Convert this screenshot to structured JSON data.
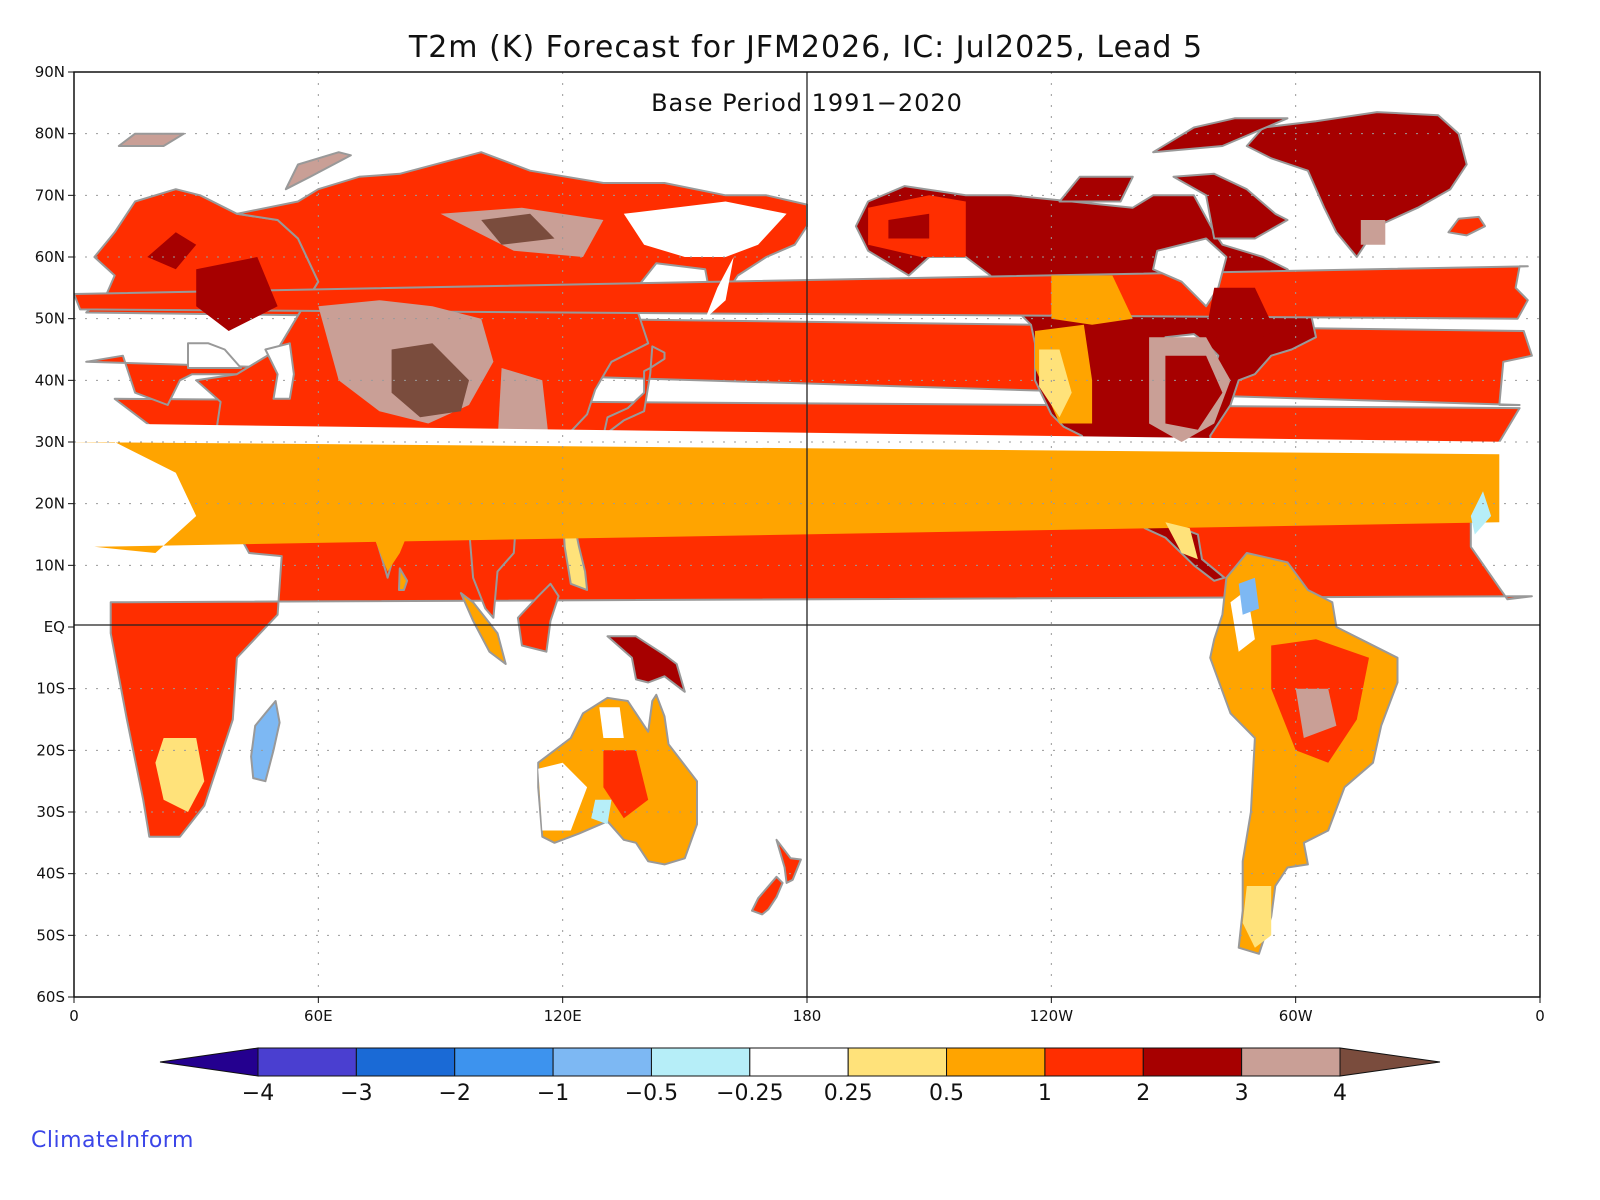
{
  "chart_data": {
    "type": "heatmap",
    "title": "T2m (K) Forecast for JFM2026, IC: Jul2025, Lead 5",
    "subtitle": "Base Period 1991−2020",
    "variable": "2-metre temperature anomaly (K)",
    "x_axis": {
      "range": [
        0,
        360
      ],
      "unit": "degrees longitude (east)",
      "tick_labels": [
        "0",
        "60E",
        "120E",
        "180",
        "120W",
        "60W",
        "0"
      ]
    },
    "y_axis": {
      "range": [
        -60,
        90
      ],
      "unit": "degrees latitude",
      "tick_labels": [
        "60S",
        "50S",
        "40S",
        "30S",
        "20S",
        "10S",
        "EQ",
        "10N",
        "20N",
        "30N",
        "40N",
        "50N",
        "60N",
        "70N",
        "80N",
        "90N"
      ]
    },
    "reference_lines": [
      "EQ",
      "180"
    ],
    "grid": "dotted",
    "colorbar": {
      "orientation": "horizontal",
      "labels": [
        "−4",
        "−3",
        "−2",
        "−1",
        "−0.5",
        "−0.25",
        "0.25",
        "0.5",
        "1",
        "2",
        "3",
        "4"
      ],
      "colors": [
        "#24008f",
        "#4a3fd0",
        "#1a6ad6",
        "#3d93ee",
        "#7db8f3",
        "#b6eef8",
        "#ffffff",
        "#ffe27a",
        "#ffa400",
        "#ff2e00",
        "#a60000",
        "#c99f96",
        "#7a4c3d"
      ]
    },
    "regions": [
      {
        "name": "Europe",
        "category": "2 to 3"
      },
      {
        "name": "Central Asia / Mongolia",
        "category": "3 to 4 and above"
      },
      {
        "name": "Siberia",
        "category": "2 to 4"
      },
      {
        "name": "Far East Russia",
        "category": "-0.25 to 0.5"
      },
      {
        "name": "China",
        "category": "2 to 3"
      },
      {
        "name": "India",
        "category": "1 to 2"
      },
      {
        "name": "Africa",
        "category": "1 to 2"
      },
      {
        "name": "Southeast Asia",
        "category": "0.5 to 2"
      },
      {
        "name": "Australia",
        "category": "0.25 to 1"
      },
      {
        "name": "Alaska",
        "category": "1 to 2"
      },
      {
        "name": "Canada",
        "category": "2 to 3"
      },
      {
        "name": "Greenland",
        "category": "2 to 3"
      },
      {
        "name": "Eastern United States",
        "category": "3 to 4"
      },
      {
        "name": "Western United States",
        "category": "0.5 to 1"
      },
      {
        "name": "Mexico",
        "category": "1 to 2"
      },
      {
        "name": "South America",
        "category": "1 to 2"
      },
      {
        "name": "Patagonia",
        "category": "0.5 to 1"
      },
      {
        "name": "Madagascar",
        "category": "-1 to -0.25"
      }
    ]
  },
  "credit": "ClimateInform"
}
